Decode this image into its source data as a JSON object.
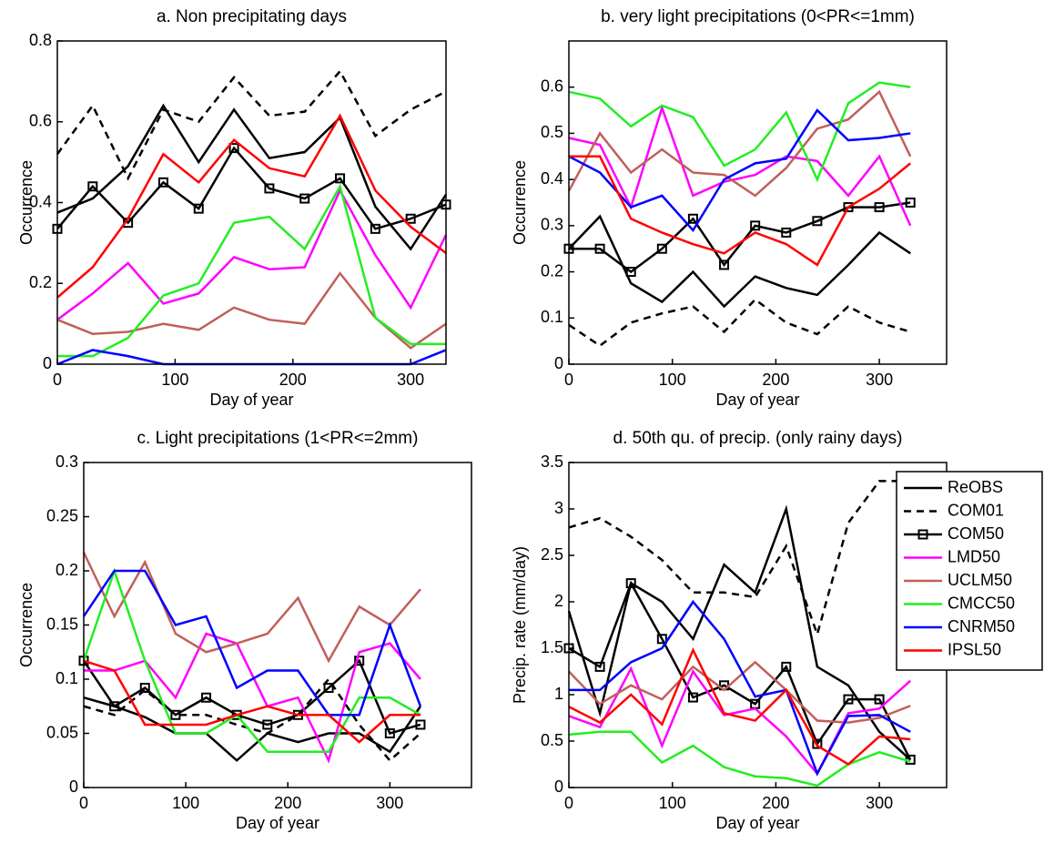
{
  "chart_data": [
    {
      "type": "line",
      "title": "a. Non precipitating days",
      "x_label": "Day of year",
      "y_label": "Occurrence",
      "x": [
        0,
        30,
        60,
        90,
        120,
        150,
        180,
        210,
        240,
        270,
        300,
        330
      ],
      "xlim": [
        0,
        330
      ],
      "xticks": [
        0,
        100,
        200,
        300
      ],
      "ylim": [
        0,
        0.8
      ],
      "yticks": [
        0,
        0.2,
        0.4,
        0.6,
        0.8
      ],
      "series": [
        {
          "color": "#000000",
          "values": [
            0.375,
            0.41,
            0.49,
            0.64,
            0.5,
            0.63,
            0.51,
            0.525,
            0.61,
            0.39,
            0.285,
            0.42
          ]
        },
        {
          "color": "#000000",
          "dash": true,
          "values": [
            0.52,
            0.64,
            0.46,
            0.63,
            0.6,
            0.71,
            0.615,
            0.625,
            0.725,
            0.565,
            0.63,
            0.675
          ]
        },
        {
          "color": "#000000",
          "marker": "square",
          "values": [
            0.335,
            0.44,
            0.35,
            0.45,
            0.385,
            0.535,
            0.435,
            0.41,
            0.46,
            0.335,
            0.36,
            0.395
          ]
        },
        {
          "color": "#ff00ff",
          "values": [
            0.11,
            0.175,
            0.25,
            0.15,
            0.175,
            0.265,
            0.235,
            0.24,
            0.43,
            0.27,
            0.14,
            0.32
          ]
        },
        {
          "color": "#c0605a",
          "values": [
            0.11,
            0.075,
            0.08,
            0.1,
            0.085,
            0.14,
            0.11,
            0.1,
            0.225,
            0.115,
            0.04,
            0.1
          ]
        },
        {
          "color": "#22ee22",
          "values": [
            0.02,
            0.02,
            0.065,
            0.17,
            0.2,
            0.35,
            0.365,
            0.285,
            0.44,
            0.115,
            0.05,
            0.05
          ]
        },
        {
          "color": "#0000ff",
          "values": [
            0,
            0.035,
            0.02,
            0,
            0,
            0,
            0,
            0,
            0,
            0,
            0,
            0.035
          ]
        },
        {
          "color": "#ff0000",
          "values": [
            0.165,
            0.24,
            0.36,
            0.52,
            0.45,
            0.555,
            0.485,
            0.465,
            0.615,
            0.43,
            0.34,
            0.275
          ]
        }
      ]
    },
    {
      "type": "line",
      "title": "b. very light precipitations (0<PR<=1mm)",
      "x_label": "Day of year",
      "y_label": "Occurrence",
      "x": [
        0,
        30,
        60,
        90,
        120,
        150,
        180,
        210,
        240,
        270,
        300,
        330
      ],
      "xlim": [
        0,
        365
      ],
      "xticks": [
        0,
        100,
        200,
        300
      ],
      "ylim": [
        0,
        0.7
      ],
      "yticks": [
        0,
        0.1,
        0.2,
        0.3,
        0.4,
        0.5,
        0.6
      ],
      "series": [
        {
          "color": "#000000",
          "values": [
            0.25,
            0.32,
            0.175,
            0.135,
            0.2,
            0.125,
            0.19,
            0.165,
            0.15,
            0.215,
            0.285,
            0.24
          ]
        },
        {
          "color": "#000000",
          "dash": true,
          "values": [
            0.085,
            0.04,
            0.09,
            0.11,
            0.125,
            0.07,
            0.14,
            0.09,
            0.065,
            0.125,
            0.09,
            0.07
          ]
        },
        {
          "color": "#000000",
          "marker": "square",
          "values": [
            0.25,
            0.25,
            0.2,
            0.25,
            0.315,
            0.215,
            0.3,
            0.285,
            0.31,
            0.34,
            0.34,
            0.35
          ]
        },
        {
          "color": "#ff00ff",
          "values": [
            0.49,
            0.475,
            0.34,
            0.555,
            0.365,
            0.395,
            0.41,
            0.45,
            0.44,
            0.365,
            0.45,
            0.3
          ]
        },
        {
          "color": "#c0605a",
          "values": [
            0.375,
            0.5,
            0.415,
            0.465,
            0.415,
            0.41,
            0.365,
            0.425,
            0.51,
            0.53,
            0.59,
            0.45
          ]
        },
        {
          "color": "#22ee22",
          "values": [
            0.59,
            0.575,
            0.515,
            0.56,
            0.535,
            0.43,
            0.465,
            0.545,
            0.4,
            0.565,
            0.61,
            0.6
          ]
        },
        {
          "color": "#0000ff",
          "values": [
            0.45,
            0.415,
            0.34,
            0.365,
            0.29,
            0.4,
            0.435,
            0.445,
            0.55,
            0.485,
            0.49,
            0.5
          ]
        },
        {
          "color": "#ff0000",
          "values": [
            0.45,
            0.45,
            0.315,
            0.285,
            0.26,
            0.24,
            0.285,
            0.26,
            0.215,
            0.34,
            0.38,
            0.435
          ]
        }
      ]
    },
    {
      "type": "line",
      "title": "c. Light precipitations (1<PR<=2mm)",
      "x_label": "Day of year",
      "y_label": "Occurrence",
      "x": [
        0,
        30,
        60,
        90,
        120,
        150,
        180,
        210,
        240,
        270,
        300,
        330
      ],
      "xlim": [
        0,
        380
      ],
      "xticks": [
        0,
        100,
        200,
        300
      ],
      "ylim": [
        0,
        0.3
      ],
      "yticks": [
        0,
        0.05,
        0.1,
        0.15,
        0.2,
        0.25,
        0.3
      ],
      "series": [
        {
          "color": "#000000",
          "values": [
            0.083,
            0.075,
            0.065,
            0.05,
            0.05,
            0.025,
            0.05,
            0.042,
            0.05,
            0.05,
            0.033,
            0.075
          ]
        },
        {
          "color": "#000000",
          "dash": true,
          "values": [
            0.075,
            0.067,
            0.09,
            0.067,
            0.067,
            0.058,
            0.05,
            0.067,
            0.1,
            0.058,
            0.025,
            0.05
          ]
        },
        {
          "color": "#000000",
          "marker": "square",
          "values": [
            0.117,
            0.075,
            0.092,
            0.067,
            0.083,
            0.067,
            0.058,
            0.067,
            0.092,
            0.117,
            0.05,
            0.058
          ]
        },
        {
          "color": "#ff00ff",
          "values": [
            0.108,
            0.108,
            0.117,
            0.083,
            0.142,
            0.133,
            0.075,
            0.083,
            0.025,
            0.125,
            0.133,
            0.1
          ]
        },
        {
          "color": "#c0605a",
          "values": [
            0.217,
            0.158,
            0.208,
            0.142,
            0.125,
            0.133,
            0.142,
            0.175,
            0.117,
            0.167,
            0.15,
            0.183
          ]
        },
        {
          "color": "#22ee22",
          "values": [
            0.117,
            0.2,
            0.117,
            0.05,
            0.05,
            0.067,
            0.033,
            0.033,
            0.033,
            0.083,
            0.083,
            0.067
          ]
        },
        {
          "color": "#0000ff",
          "values": [
            0.158,
            0.2,
            0.2,
            0.15,
            0.158,
            0.092,
            0.108,
            0.108,
            0.067,
            0.067,
            0.15,
            0.075
          ]
        },
        {
          "color": "#ff0000",
          "values": [
            0.117,
            0.108,
            0.058,
            0.058,
            0.058,
            0.067,
            0.075,
            0.067,
            0.067,
            0.042,
            0.067,
            0.067
          ]
        }
      ]
    },
    {
      "type": "line",
      "title": "d. 50th qu. of precip. (only rainy days)",
      "x_label": "Day of year",
      "y_label": "Precip. rate (mm/day)",
      "x": [
        0,
        30,
        60,
        90,
        120,
        150,
        180,
        210,
        240,
        270,
        300,
        330
      ],
      "xlim": [
        0,
        365
      ],
      "xticks": [
        0,
        100,
        200,
        300
      ],
      "ylim": [
        0,
        3.5
      ],
      "yticks": [
        0,
        0.5,
        1,
        1.5,
        2,
        2.5,
        3,
        3.5
      ],
      "legend": "upper right",
      "series": [
        {
          "name": "ReOBS",
          "color": "#000000",
          "values": [
            1.9,
            0.8,
            2.2,
            2.0,
            1.6,
            2.4,
            2.1,
            3.0,
            1.3,
            1.1,
            0.6,
            0.3
          ]
        },
        {
          "name": "COM01",
          "color": "#000000",
          "dash": true,
          "values": [
            2.8,
            2.9,
            2.7,
            2.45,
            2.1,
            2.1,
            2.05,
            2.6,
            1.65,
            2.85,
            3.3,
            3.3
          ]
        },
        {
          "name": "COM50",
          "color": "#000000",
          "marker": "square",
          "values": [
            1.5,
            1.3,
            2.2,
            1.6,
            0.97,
            1.1,
            0.9,
            1.3,
            0.47,
            0.95,
            0.95,
            0.3
          ]
        },
        {
          "name": "LMD50",
          "color": "#ff00ff",
          "values": [
            0.77,
            0.65,
            1.28,
            0.45,
            1.25,
            0.78,
            0.85,
            0.55,
            0.15,
            0.8,
            0.85,
            1.15
          ]
        },
        {
          "name": "UCLM50",
          "color": "#c0605a",
          "values": [
            1.25,
            0.9,
            1.1,
            0.95,
            1.3,
            1.05,
            1.35,
            1.05,
            0.72,
            0.7,
            0.75,
            0.88
          ]
        },
        {
          "name": "CMCC50",
          "color": "#22ee22",
          "values": [
            0.57,
            0.6,
            0.6,
            0.27,
            0.45,
            0.22,
            0.12,
            0.1,
            0.02,
            0.25,
            0.38,
            0.28
          ]
        },
        {
          "name": "CNRM50",
          "color": "#0000ff",
          "values": [
            1.05,
            1.05,
            1.35,
            1.5,
            2.0,
            1.6,
            0.98,
            1.05,
            0.15,
            0.77,
            0.78,
            0.6
          ]
        },
        {
          "name": "IPSL50",
          "color": "#ff0000",
          "values": [
            0.87,
            0.7,
            1.0,
            0.68,
            1.48,
            0.8,
            0.72,
            1.05,
            0.45,
            0.25,
            0.55,
            0.52
          ]
        }
      ]
    }
  ]
}
